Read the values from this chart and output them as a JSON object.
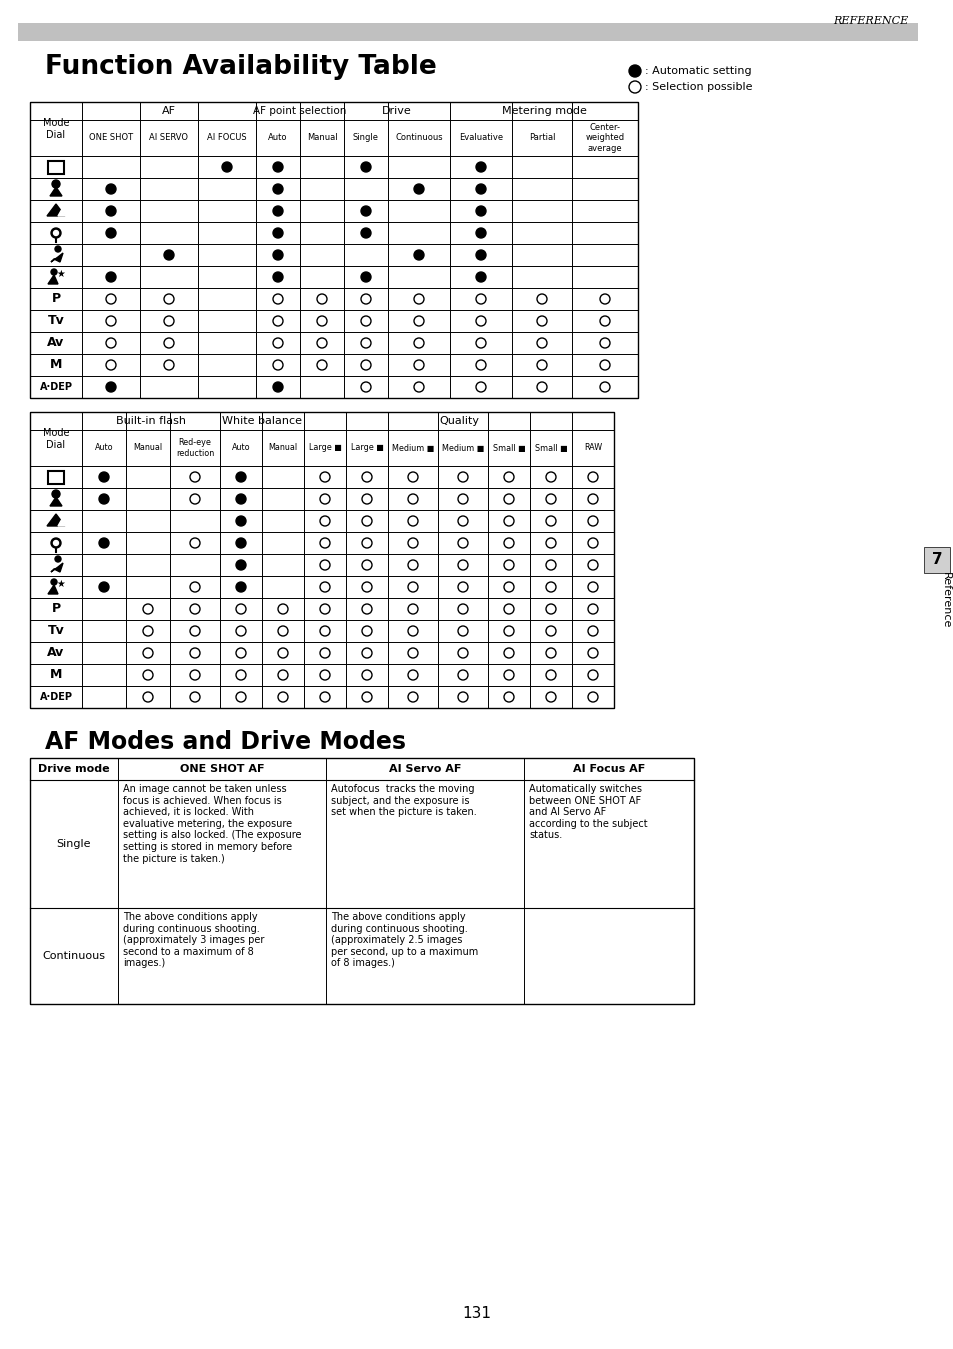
{
  "title": "Function Availability Table",
  "reference_label": "REFERENCE",
  "legend_filled": ": Automatic setting",
  "legend_open": ": Selection possible",
  "page_number": "131",
  "section2_title": "AF Modes and Drive Modes",
  "t1_subheaders": [
    "ONE SHOT",
    "AI SERVO",
    "AI FOCUS",
    "Auto",
    "Manual",
    "Single",
    "Continuous",
    "Evaluative",
    "Partial",
    "Center-\nweighted\naverage"
  ],
  "t1_data": [
    [
      "",
      "",
      "F",
      "F",
      "",
      "F",
      "",
      "F",
      "",
      ""
    ],
    [
      "F",
      "",
      "",
      "F",
      "",
      "",
      "F",
      "F",
      "",
      ""
    ],
    [
      "F",
      "",
      "",
      "F",
      "",
      "F",
      "",
      "F",
      "",
      ""
    ],
    [
      "F",
      "",
      "",
      "F",
      "",
      "F",
      "",
      "F",
      "",
      ""
    ],
    [
      "",
      "F",
      "",
      "F",
      "",
      "",
      "F",
      "F",
      "",
      ""
    ],
    [
      "F",
      "",
      "",
      "F",
      "",
      "F",
      "",
      "F",
      "",
      ""
    ],
    [
      "O",
      "O",
      "",
      "O",
      "O",
      "O",
      "O",
      "O",
      "O",
      "O"
    ],
    [
      "O",
      "O",
      "",
      "O",
      "O",
      "O",
      "O",
      "O",
      "O",
      "O"
    ],
    [
      "O",
      "O",
      "",
      "O",
      "O",
      "O",
      "O",
      "O",
      "O",
      "O"
    ],
    [
      "O",
      "O",
      "",
      "O",
      "O",
      "O",
      "O",
      "O",
      "O",
      "O"
    ],
    [
      "F",
      "",
      "",
      "F",
      "",
      "O",
      "O",
      "O",
      "O",
      "O"
    ]
  ],
  "t2_subheaders": [
    "Auto",
    "Manual",
    "Red-eye\nreduction",
    "Auto",
    "Manual",
    "Large ■",
    "Large ■",
    "Medium ■",
    "Medium ■",
    "Small ■",
    "Small ■",
    "RAW"
  ],
  "t2_data": [
    [
      "F",
      "",
      "O",
      "F",
      "",
      "O",
      "O",
      "O",
      "O",
      "O",
      "O",
      "O"
    ],
    [
      "F",
      "",
      "O",
      "F",
      "",
      "O",
      "O",
      "O",
      "O",
      "O",
      "O",
      "O"
    ],
    [
      "",
      "",
      "",
      "F",
      "",
      "O",
      "O",
      "O",
      "O",
      "O",
      "O",
      "O"
    ],
    [
      "F",
      "",
      "O",
      "F",
      "",
      "O",
      "O",
      "O",
      "O",
      "O",
      "O",
      "O"
    ],
    [
      "",
      "",
      "",
      "F",
      "",
      "O",
      "O",
      "O",
      "O",
      "O",
      "O",
      "O"
    ],
    [
      "F",
      "",
      "O",
      "F",
      "",
      "O",
      "O",
      "O",
      "O",
      "O",
      "O",
      "O"
    ],
    [
      "",
      "O",
      "O",
      "O",
      "O",
      "O",
      "O",
      "O",
      "O",
      "O",
      "O",
      "O"
    ],
    [
      "",
      "O",
      "O",
      "O",
      "O",
      "O",
      "O",
      "O",
      "O",
      "O",
      "O",
      "O"
    ],
    [
      "",
      "O",
      "O",
      "O",
      "O",
      "O",
      "O",
      "O",
      "O",
      "O",
      "O",
      "O"
    ],
    [
      "",
      "O",
      "O",
      "O",
      "O",
      "O",
      "O",
      "O",
      "O",
      "O",
      "O",
      "O"
    ],
    [
      "",
      "O",
      "O",
      "O",
      "O",
      "O",
      "O",
      "O",
      "O",
      "O",
      "O",
      "O"
    ]
  ],
  "af_headers": [
    "Drive mode",
    "ONE SHOT AF",
    "AI Servo AF",
    "AI Focus AF"
  ],
  "af_row1_drive": "Single",
  "af_row1_oneshot": "An image cannot be taken unless\nfocus is achieved. When focus is\nachieved, it is locked. With\nevaluative metering, the exposure\nsetting is also locked. (The exposure\nsetting is stored in memory before\nthe picture is taken.)",
  "af_row1_servo": "Autofocus  tracks the moving\nsubject, and the exposure is\nset when the picture is taken.",
  "af_row1_focus": "Automatically switches\nbetween ONE SHOT AF\nand AI Servo AF\naccording to the subject\nstatus.",
  "af_row2_drive": "Continuous",
  "af_row2_oneshot": "The above conditions apply\nduring continuous shooting.\n(approximately 3 images per\nsecond to a maximum of 8\nimages.)",
  "af_row2_servo": "The above conditions apply\nduring continuous shooting.\n(approximately 2.5 images\nper second, up to a maximum\nof 8 images.)",
  "af_row2_focus": ""
}
